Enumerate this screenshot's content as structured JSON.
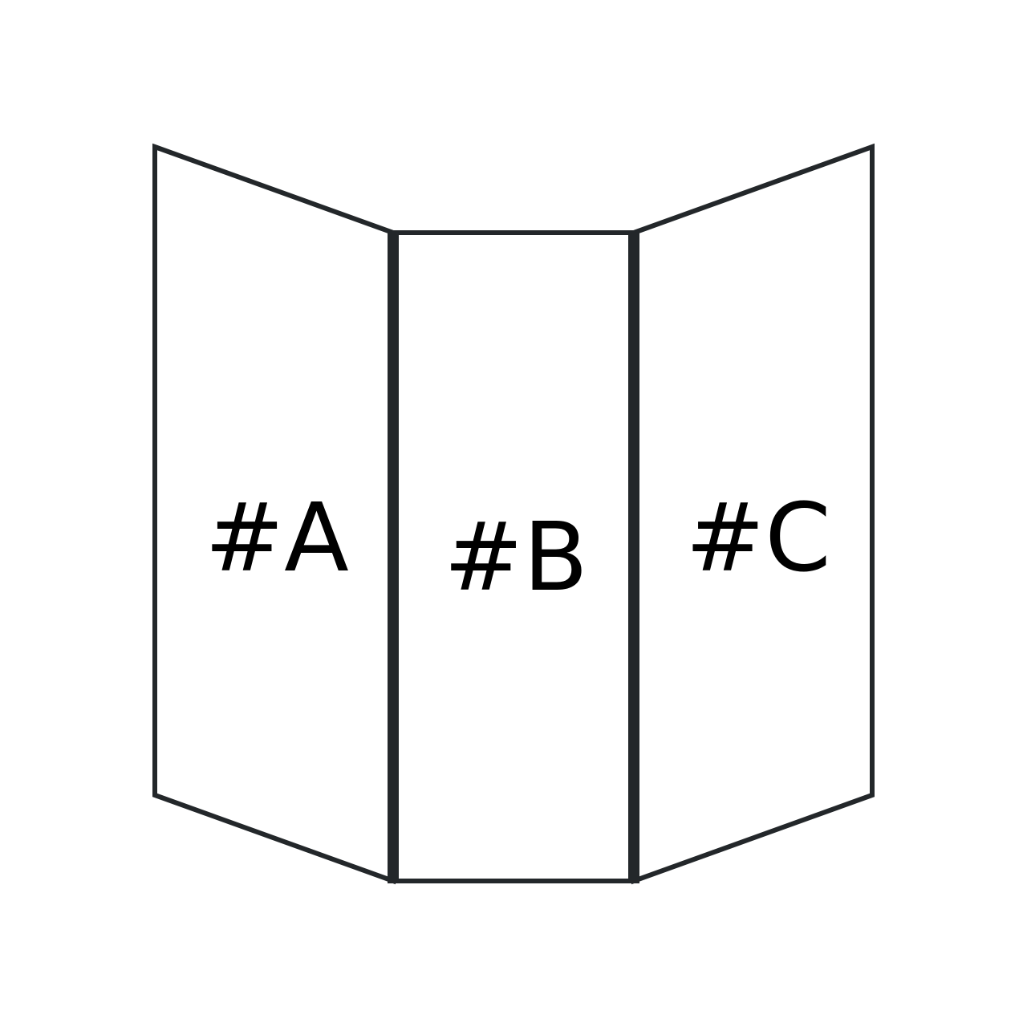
{
  "diagram": {
    "panels": [
      {
        "id": "left",
        "label": "#A"
      },
      {
        "id": "center",
        "label": "#B"
      },
      {
        "id": "right",
        "label": "#C"
      }
    ],
    "colors": {
      "stroke": "#23272a",
      "fill": "#ffffff",
      "text": "#000000"
    }
  }
}
